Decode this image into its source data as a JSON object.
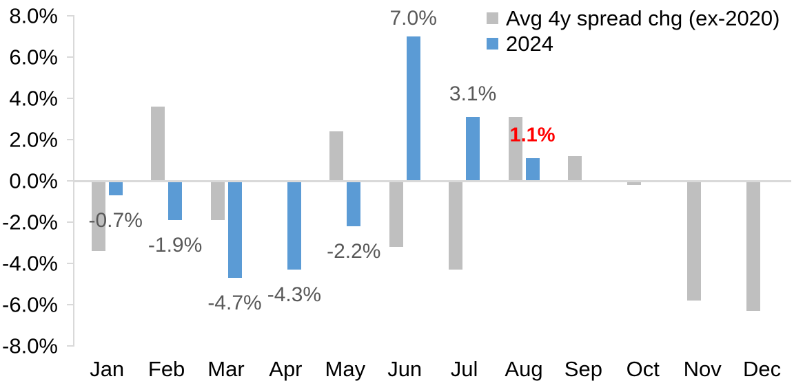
{
  "chart_data": {
    "type": "bar",
    "title": "",
    "xlabel": "",
    "ylabel": "",
    "categories": [
      "Jan",
      "Feb",
      "Mar",
      "Apr",
      "May",
      "Jun",
      "Jul",
      "Aug",
      "Sep",
      "Oct",
      "Nov",
      "Dec"
    ],
    "series": [
      {
        "name": "Avg 4y spread chg (ex-2020)",
        "color": "#BFBFBF",
        "values": [
          -3.4,
          3.6,
          -1.9,
          0.0,
          2.4,
          -3.2,
          -4.3,
          3.1,
          1.2,
          -0.2,
          -5.8,
          -6.3
        ]
      },
      {
        "name": "2024",
        "color": "#5B9BD5",
        "values": [
          -0.7,
          -1.9,
          -4.7,
          -4.3,
          -2.2,
          7.0,
          3.1,
          1.1,
          null,
          null,
          null,
          null
        ]
      }
    ],
    "data_labels": [
      {
        "month_index": 0,
        "text": "-0.7%",
        "color": "#595959",
        "bold": false
      },
      {
        "month_index": 1,
        "text": "-1.9%",
        "color": "#595959",
        "bold": false
      },
      {
        "month_index": 2,
        "text": "-4.7%",
        "color": "#595959",
        "bold": false
      },
      {
        "month_index": 3,
        "text": "-4.3%",
        "color": "#595959",
        "bold": false
      },
      {
        "month_index": 4,
        "text": "-2.2%",
        "color": "#595959",
        "bold": false
      },
      {
        "month_index": 5,
        "text": "7.0%",
        "color": "#595959",
        "bold": false
      },
      {
        "month_index": 6,
        "text": "3.1%",
        "color": "#595959",
        "bold": false
      },
      {
        "month_index": 7,
        "text": "1.1%",
        "color": "#FF0000",
        "bold": true
      }
    ],
    "y_ticks": [
      "8.0%",
      "6.0%",
      "4.0%",
      "2.0%",
      "0.0%",
      "-2.0%",
      "-4.0%",
      "-6.0%",
      "-8.0%"
    ],
    "ylim": [
      -8,
      8
    ],
    "y_step": 2,
    "grid": false,
    "legend_position": "top-right",
    "axis_color": "#D9D9D9",
    "tick_label_color": "#000000",
    "data_label_color": "#595959",
    "highlight_label_color": "#FF0000"
  }
}
